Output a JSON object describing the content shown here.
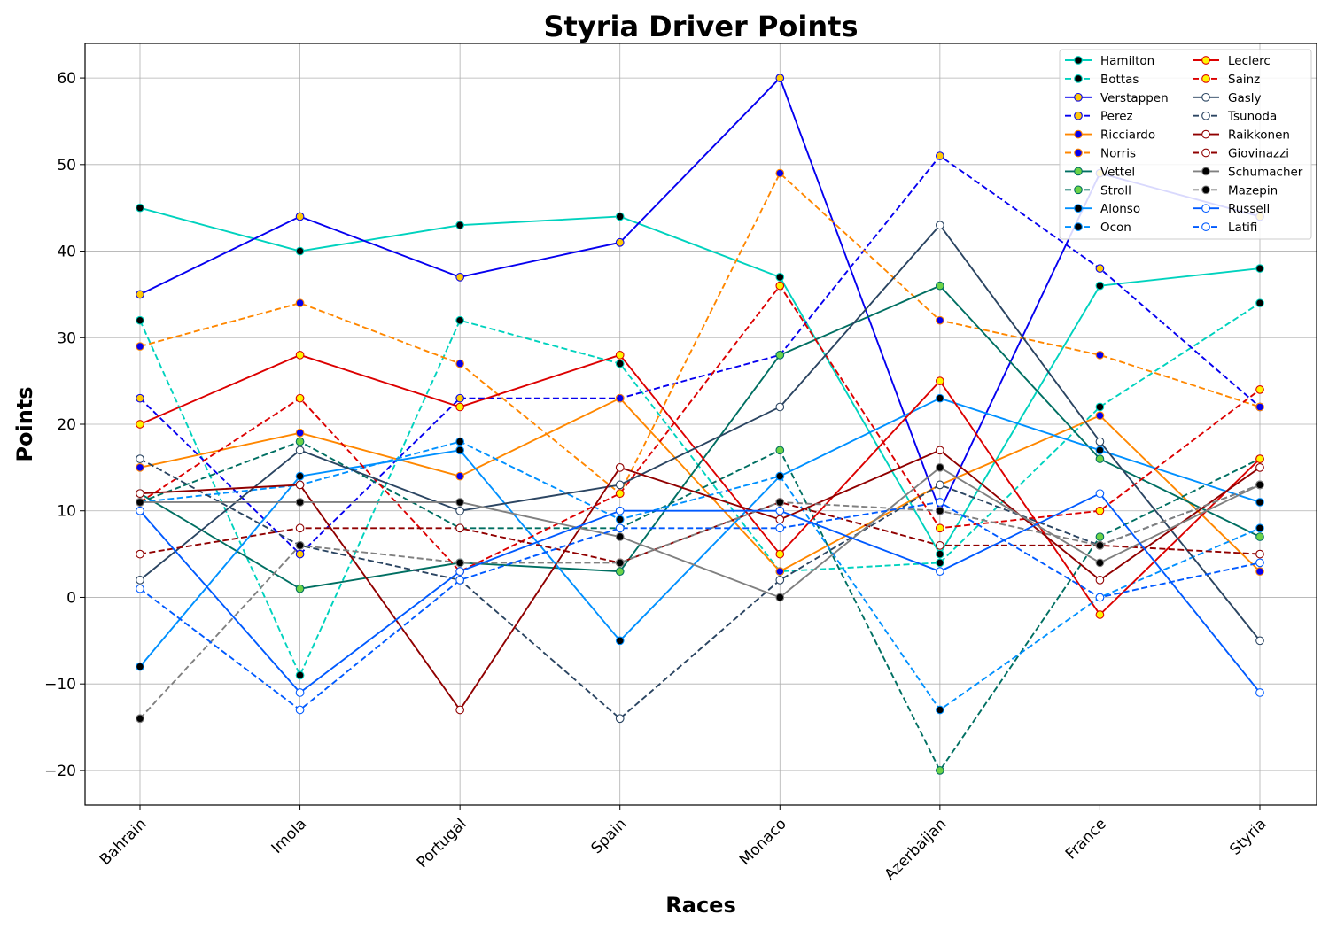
{
  "chart_data": {
    "type": "line",
    "title": "Styria Driver Points",
    "xlabel": "Races",
    "ylabel": "Points",
    "categories": [
      "Bahrain",
      "Imola",
      "Portugal",
      "Spain",
      "Monaco",
      "Azerbaijan",
      "France",
      "Styria"
    ],
    "ylim": [
      -24,
      64
    ],
    "yticks": [
      -20,
      -10,
      0,
      10,
      20,
      30,
      40,
      50,
      60
    ],
    "grid": true,
    "legend_position": "top-right",
    "legend_columns": 2,
    "series": [
      {
        "name": "Hamilton",
        "values": [
          45,
          40,
          43,
          44,
          37,
          5,
          36,
          38
        ],
        "color": "#00d2be",
        "dash": "solid",
        "marker_fill": "#000000"
      },
      {
        "name": "Bottas",
        "values": [
          32,
          -9,
          32,
          27,
          3,
          4,
          22,
          34
        ],
        "color": "#00d2be",
        "dash": "dashed",
        "marker_fill": "#000000"
      },
      {
        "name": "Verstappen",
        "values": [
          35,
          44,
          37,
          41,
          60,
          10,
          49,
          44
        ],
        "color": "#0600ef",
        "dash": "solid",
        "marker_fill": "#ffc906"
      },
      {
        "name": "Perez",
        "values": [
          23,
          5,
          23,
          23,
          28,
          51,
          38,
          22
        ],
        "color": "#0600ef",
        "dash": "dashed",
        "marker_fill": "#ffc906"
      },
      {
        "name": "Ricciardo",
        "values": [
          15,
          19,
          14,
          23,
          3,
          13,
          21,
          3
        ],
        "color": "#ff8700",
        "dash": "solid",
        "marker_fill": "#0600ef"
      },
      {
        "name": "Norris",
        "values": [
          29,
          34,
          27,
          12,
          49,
          32,
          28,
          22
        ],
        "color": "#ff8700",
        "dash": "dashed",
        "marker_fill": "#0600ef"
      },
      {
        "name": "Vettel",
        "values": [
          12,
          1,
          4,
          3,
          28,
          36,
          16,
          7
        ],
        "color": "#006f62",
        "dash": "solid",
        "marker_fill": "#6cd347"
      },
      {
        "name": "Stroll",
        "values": [
          11,
          18,
          8,
          8,
          17,
          -20,
          7,
          16
        ],
        "color": "#006f62",
        "dash": "dashed",
        "marker_fill": "#6cd347"
      },
      {
        "name": "Alonso",
        "values": [
          -8,
          14,
          17,
          -5,
          14,
          23,
          17,
          11
        ],
        "color": "#0090ff",
        "dash": "solid",
        "marker_fill": "#000000"
      },
      {
        "name": "Ocon",
        "values": [
          11,
          13,
          18,
          9,
          14,
          -13,
          0,
          8
        ],
        "color": "#0090ff",
        "dash": "dashed",
        "marker_fill": "#000000"
      },
      {
        "name": "Leclerc",
        "values": [
          20,
          28,
          22,
          28,
          5,
          25,
          -2,
          16
        ],
        "color": "#dc0000",
        "dash": "solid",
        "marker_fill": "#fff500"
      },
      {
        "name": "Sainz",
        "values": [
          11,
          23,
          3,
          12,
          36,
          8,
          10,
          24
        ],
        "color": "#dc0000",
        "dash": "dashed",
        "marker_fill": "#fff500"
      },
      {
        "name": "Gasly",
        "values": [
          2,
          17,
          10,
          13,
          22,
          43,
          18,
          -5
        ],
        "color": "#2b4562",
        "dash": "solid",
        "marker_fill": "#ffffff"
      },
      {
        "name": "Tsunoda",
        "values": [
          16,
          6,
          2,
          -14,
          2,
          13,
          6,
          13
        ],
        "color": "#2b4562",
        "dash": "dashed",
        "marker_fill": "#ffffff"
      },
      {
        "name": "Raikkonen",
        "values": [
          12,
          13,
          -13,
          15,
          9,
          17,
          2,
          15
        ],
        "color": "#900000",
        "dash": "solid",
        "marker_fill": "#ffffff"
      },
      {
        "name": "Giovinazzi",
        "values": [
          5,
          8,
          8,
          4,
          11,
          6,
          6,
          5
        ],
        "color": "#900000",
        "dash": "dashed",
        "marker_fill": "#ffffff"
      },
      {
        "name": "Schumacher",
        "values": [
          11,
          11,
          11,
          7,
          0,
          15,
          4,
          13
        ],
        "color": "#808080",
        "dash": "solid",
        "marker_fill": "#000000"
      },
      {
        "name": "Mazepin",
        "values": [
          -14,
          6,
          4,
          4,
          11,
          10,
          6,
          13
        ],
        "color": "#808080",
        "dash": "dashed",
        "marker_fill": "#000000"
      },
      {
        "name": "Russell",
        "values": [
          10,
          -11,
          3,
          10,
          10,
          3,
          12,
          -11
        ],
        "color": "#005aff",
        "dash": "solid",
        "marker_fill": "#ffffff"
      },
      {
        "name": "Latifi",
        "values": [
          1,
          -13,
          2,
          8,
          8,
          11,
          0,
          4
        ],
        "color": "#005aff",
        "dash": "dashed",
        "marker_fill": "#ffffff"
      }
    ]
  }
}
